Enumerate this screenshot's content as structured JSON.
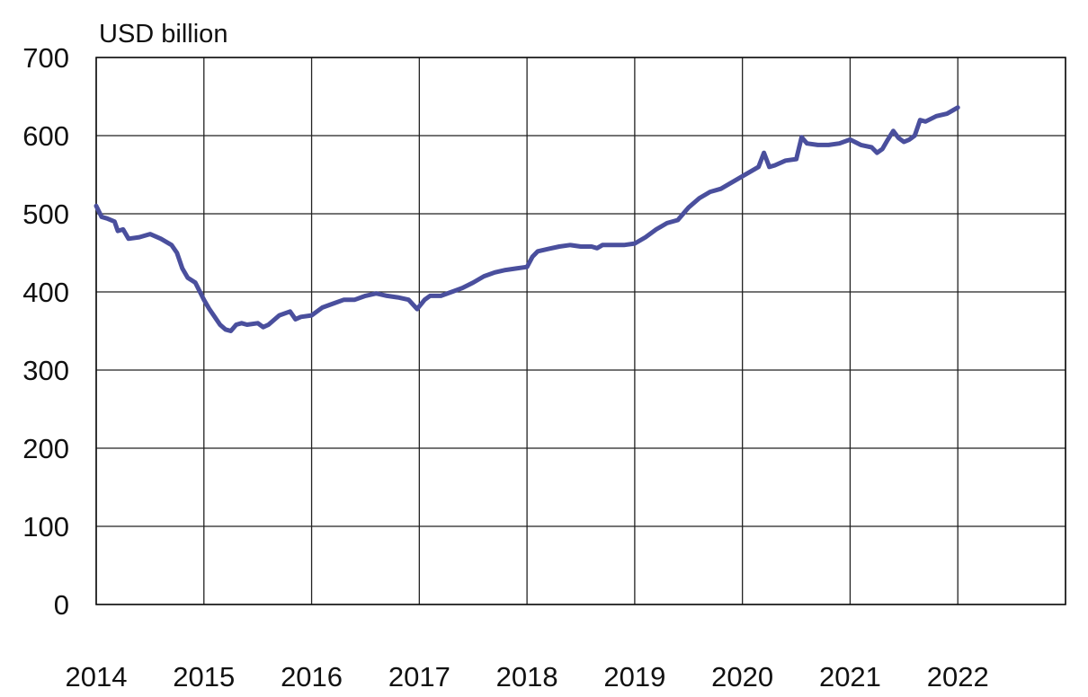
{
  "chart_data": {
    "type": "line",
    "title": "",
    "ylabel": "USD billion",
    "xlabel": "",
    "xlim": [
      2014,
      2023
    ],
    "ylim": [
      0,
      700
    ],
    "x_ticks": [
      2014,
      2015,
      2016,
      2017,
      2018,
      2019,
      2020,
      2021,
      2022
    ],
    "x_tick_labels": [
      "2014",
      "2015",
      "2016",
      "2017",
      "2018",
      "2019",
      "2020",
      "2021",
      "2022"
    ],
    "y_ticks": [
      0,
      100,
      200,
      300,
      400,
      500,
      600,
      700
    ],
    "y_tick_labels": [
      "0",
      "100",
      "200",
      "300",
      "400",
      "500",
      "600",
      "700"
    ],
    "grid": true,
    "legend": "none",
    "color": "#4a4f9d",
    "series": [
      {
        "x": [
          2014.0,
          2014.05,
          2014.1,
          2014.17,
          2014.2,
          2014.25,
          2014.3,
          2014.4,
          2014.5,
          2014.6,
          2014.7,
          2014.75,
          2014.8,
          2014.85,
          2014.92,
          2015.0,
          2015.05,
          2015.1,
          2015.15,
          2015.2,
          2015.25,
          2015.3,
          2015.35,
          2015.4,
          2015.5,
          2015.55,
          2015.6,
          2015.7,
          2015.8,
          2015.85,
          2015.9,
          2016.0,
          2016.1,
          2016.2,
          2016.3,
          2016.4,
          2016.5,
          2016.6,
          2016.7,
          2016.8,
          2016.9,
          2016.98,
          2017.05,
          2017.1,
          2017.2,
          2017.3,
          2017.4,
          2017.5,
          2017.6,
          2017.7,
          2017.8,
          2017.9,
          2018.0,
          2018.05,
          2018.1,
          2018.2,
          2018.3,
          2018.4,
          2018.5,
          2018.6,
          2018.65,
          2018.7,
          2018.8,
          2018.9,
          2019.0,
          2019.1,
          2019.2,
          2019.3,
          2019.4,
          2019.5,
          2019.6,
          2019.7,
          2019.8,
          2019.9,
          2020.0,
          2020.1,
          2020.15,
          2020.2,
          2020.25,
          2020.3,
          2020.4,
          2020.5,
          2020.55,
          2020.6,
          2020.7,
          2020.8,
          2020.9,
          2021.0,
          2021.1,
          2021.2,
          2021.25,
          2021.3,
          2021.35,
          2021.4,
          2021.45,
          2021.5,
          2021.55,
          2021.6,
          2021.65,
          2021.7,
          2021.8,
          2021.9,
          2022.0
        ],
        "values": [
          510,
          496,
          494,
          490,
          478,
          480,
          468,
          470,
          474,
          468,
          460,
          450,
          430,
          418,
          412,
          390,
          378,
          368,
          358,
          352,
          350,
          358,
          360,
          358,
          360,
          355,
          358,
          370,
          375,
          365,
          368,
          370,
          380,
          385,
          390,
          390,
          395,
          398,
          395,
          393,
          390,
          378,
          390,
          395,
          395,
          400,
          405,
          412,
          420,
          425,
          428,
          430,
          432,
          445,
          452,
          455,
          458,
          460,
          458,
          458,
          456,
          460,
          460,
          460,
          462,
          470,
          480,
          488,
          492,
          508,
          520,
          528,
          532,
          540,
          548,
          556,
          560,
          578,
          560,
          562,
          568,
          570,
          598,
          590,
          588,
          588,
          590,
          595,
          588,
          585,
          578,
          583,
          595,
          606,
          597,
          592,
          595,
          600,
          620,
          618,
          625,
          628,
          636
        ]
      }
    ]
  }
}
